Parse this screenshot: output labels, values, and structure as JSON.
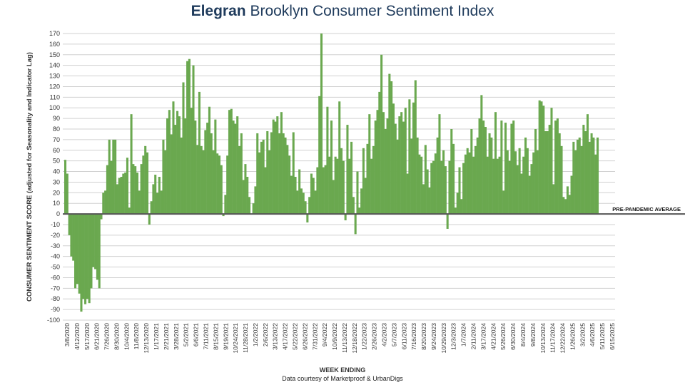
{
  "header": {
    "brand": "Elegran",
    "title": "Brooklyn Consumer Sentiment Index"
  },
  "footer": {
    "credit": "Data courtesy of Marketproof & UrbanDigs"
  },
  "colors": {
    "bar": "#6aa84f",
    "grid": "#d0d0d0",
    "baseline": "#555555",
    "title": "#1f3b5c"
  },
  "chart_data": {
    "type": "bar",
    "xlabel": "WEEK ENDING",
    "ylabel": "CONSUMER SENTIMENT SCORE (adjusted for Seasonality and Indicator Lag)",
    "ylim": [
      -100,
      170
    ],
    "yticks": [
      170,
      160,
      150,
      140,
      130,
      120,
      110,
      100,
      90,
      80,
      70,
      60,
      50,
      40,
      30,
      20,
      10,
      0,
      -10,
      -20,
      -30,
      -40,
      -50,
      -60,
      -70,
      -80,
      -90,
      -100
    ],
    "grid": true,
    "reference_line": {
      "value": 0,
      "label": "PRE-PANDEMIC AVERAGE"
    },
    "xticks": [
      "3/8/2020",
      "4/12/2020",
      "5/17/2020",
      "6/21/2020",
      "7/26/2020",
      "8/30/2020",
      "10/4/2020",
      "11/8/2020",
      "12/13/2020",
      "1/17/2021",
      "2/21/2021",
      "3/28/2021",
      "5/2/2021",
      "6/6/2021",
      "7/11/2021",
      "8/15/2021",
      "9/19/2021",
      "10/24/2021",
      "11/28/2021",
      "1/2/2022",
      "2/6/2022",
      "3/13/2022",
      "4/17/2022",
      "5/22/2022",
      "6/26/2022",
      "7/31/2022",
      "9/4/2022",
      "10/9/2022",
      "11/13/2022",
      "12/18/2022",
      "1/22/2023",
      "2/26/2023",
      "4/2/2023",
      "5/7/2023",
      "6/11/2023",
      "7/16/2023",
      "8/20/2023",
      "9/24/2023",
      "10/29/2023",
      "12/3/2023",
      "1/7/2024",
      "2/11/2024",
      "3/17/2024",
      "4/21/2024",
      "5/26/2024",
      "6/30/2024",
      "8/4/2024",
      "9/8/2024",
      "10/13/2024",
      "11/17/2024",
      "12/22/2024",
      "1/26/2025",
      "3/2/2025",
      "4/6/2025",
      "5/11/2025",
      "6/15/2025"
    ],
    "values": [
      51,
      38,
      -20,
      -40,
      -44,
      -70,
      -66,
      -75,
      -92,
      -80,
      -85,
      -80,
      -84,
      -70,
      -50,
      -52,
      -62,
      -70,
      -5,
      20,
      22,
      46,
      70,
      50,
      70,
      70,
      28,
      34,
      35,
      38,
      39,
      53,
      6,
      94,
      47,
      45,
      39,
      22,
      47,
      55,
      64,
      58,
      -10,
      12,
      28,
      37,
      20,
      35,
      22,
      70,
      60,
      90,
      98,
      75,
      106,
      84,
      97,
      92,
      72,
      124,
      90,
      144,
      146,
      100,
      140,
      88,
      65,
      115,
      64,
      60,
      79,
      86,
      101,
      76,
      60,
      89,
      57,
      55,
      46,
      -2,
      18,
      55,
      98,
      99,
      88,
      85,
      92,
      64,
      76,
      32,
      47,
      35,
      16,
      0,
      10,
      26,
      76,
      58,
      68,
      70,
      44,
      78,
      60,
      77,
      89,
      87,
      92,
      76,
      96,
      76,
      72,
      65,
      55,
      36,
      77,
      35,
      22,
      42,
      24,
      20,
      12,
      -8,
      16,
      38,
      34,
      22,
      44,
      111,
      170,
      44,
      46,
      101,
      54,
      88,
      32,
      54,
      52,
      106,
      62,
      50,
      -6,
      84,
      52,
      68,
      16,
      -19,
      40,
      6,
      24,
      62,
      34,
      66,
      94,
      52,
      64,
      88,
      98,
      115,
      150,
      96,
      80,
      90,
      132,
      125,
      104,
      85,
      70,
      92,
      96,
      87,
      100,
      38,
      108,
      71,
      105,
      126,
      72,
      56,
      54,
      28,
      65,
      42,
      25,
      48,
      50,
      57,
      72,
      94,
      50,
      60,
      45,
      -14,
      50,
      80,
      66,
      6,
      20,
      44,
      14,
      48,
      56,
      62,
      58,
      80,
      54,
      64,
      72,
      90,
      112,
      88,
      82,
      54,
      76,
      72,
      52,
      96,
      52,
      54,
      88,
      22,
      86,
      60,
      50,
      85,
      88,
      59,
      46,
      62,
      38,
      54,
      72,
      62,
      36,
      47,
      58,
      80,
      60,
      107,
      106,
      102,
      78,
      78,
      84,
      100,
      28,
      88,
      90,
      76,
      64,
      16,
      14,
      26,
      18,
      36,
      68,
      60,
      70,
      72,
      64,
      84,
      78,
      94,
      68,
      76,
      72,
      56,
      72
    ],
    "series_color": "#6aa84f"
  }
}
